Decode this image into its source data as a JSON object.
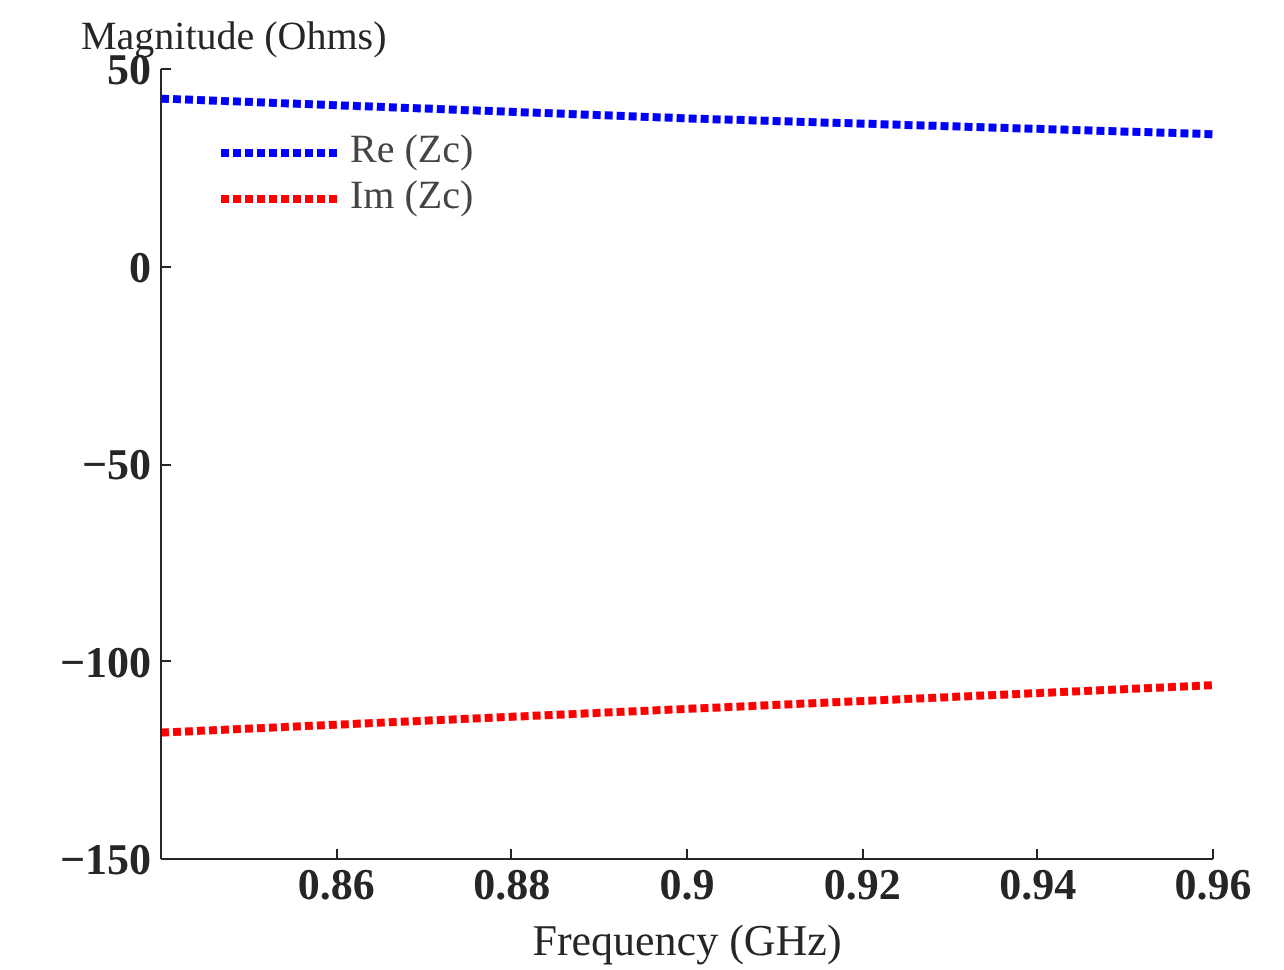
{
  "chart_data": {
    "type": "line",
    "xlabel": "Frequency (GHz)",
    "ylabel": "Magnitude (Ohms)",
    "x": [
      0.84,
      0.87,
      0.9,
      0.93,
      0.96
    ],
    "series": [
      {
        "name": "Re (Zc)",
        "color": "#0000ff",
        "values": [
          42.5,
          40,
          37.5,
          35.5,
          33.5
        ]
      },
      {
        "name": "Im (Zc)",
        "color": "#ff0000",
        "values": [
          -118,
          -115,
          -112,
          -109,
          -106
        ]
      }
    ],
    "xlim": [
      0.84,
      0.96
    ],
    "ylim": [
      -150,
      50
    ],
    "xticks": [
      0.86,
      0.88,
      0.9,
      0.92,
      0.94,
      0.96
    ],
    "yticks": [
      -150,
      -100,
      -50,
      0,
      50
    ],
    "line_style": "dashed",
    "legend": "top left",
    "grid": false
  }
}
